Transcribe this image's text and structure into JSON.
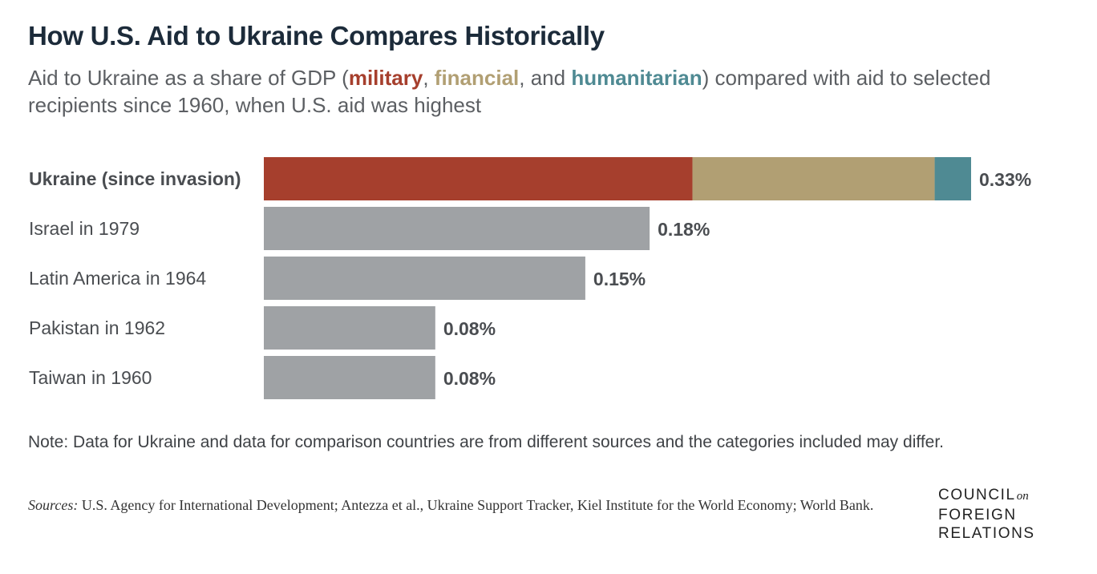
{
  "header": {
    "title": "How U.S. Aid to Ukraine Compares Historically",
    "subtitle_pre": "Aid to Ukraine as a share of GDP (",
    "kw_military": "military",
    "sep1": ", ",
    "kw_financial": "financial",
    "sep2": ", and ",
    "kw_humanitarian": "humanitarian",
    "subtitle_post": ") compared with aid to selected recipients since 1960, when U.S. aid was highest"
  },
  "colors": {
    "military": "#a63f2d",
    "financial": "#b19f73",
    "humanitarian": "#4f8a93",
    "other": "#9fa2a5",
    "label": "#4a4d51"
  },
  "chart_data": {
    "type": "bar",
    "orientation": "horizontal",
    "stacked": true,
    "categories": [
      "Ukraine (since invasion)",
      "Israel in 1979",
      "Latin America in 1964",
      "Pakistan in 1962",
      "Taiwan in 1960"
    ],
    "totals": [
      0.33,
      0.18,
      0.15,
      0.08,
      0.08
    ],
    "value_labels": [
      "0.33%",
      "0.18%",
      "0.15%",
      "0.08%",
      "0.08%"
    ],
    "ukraine_components": [
      {
        "name": "military",
        "value": 0.2
      },
      {
        "name": "financial",
        "value": 0.113
      },
      {
        "name": "humanitarian",
        "value": 0.017
      }
    ],
    "xlim": [
      0,
      0.33
    ],
    "grid": false,
    "legend": "inline in subtitle"
  },
  "footer": {
    "note": "Note: Data for Ukraine and data for comparison countries are from different sources and the categories included may differ.",
    "sources_label": "Sources:",
    "sources_text": " U.S. Agency for International Development; Antezza et al., Ukraine Support Tracker, Kiel Institute for the World Economy; World Bank.",
    "logo_line1": "COUNCIL",
    "logo_on": "on",
    "logo_line2": "FOREIGN",
    "logo_line3": "RELATIONS"
  }
}
